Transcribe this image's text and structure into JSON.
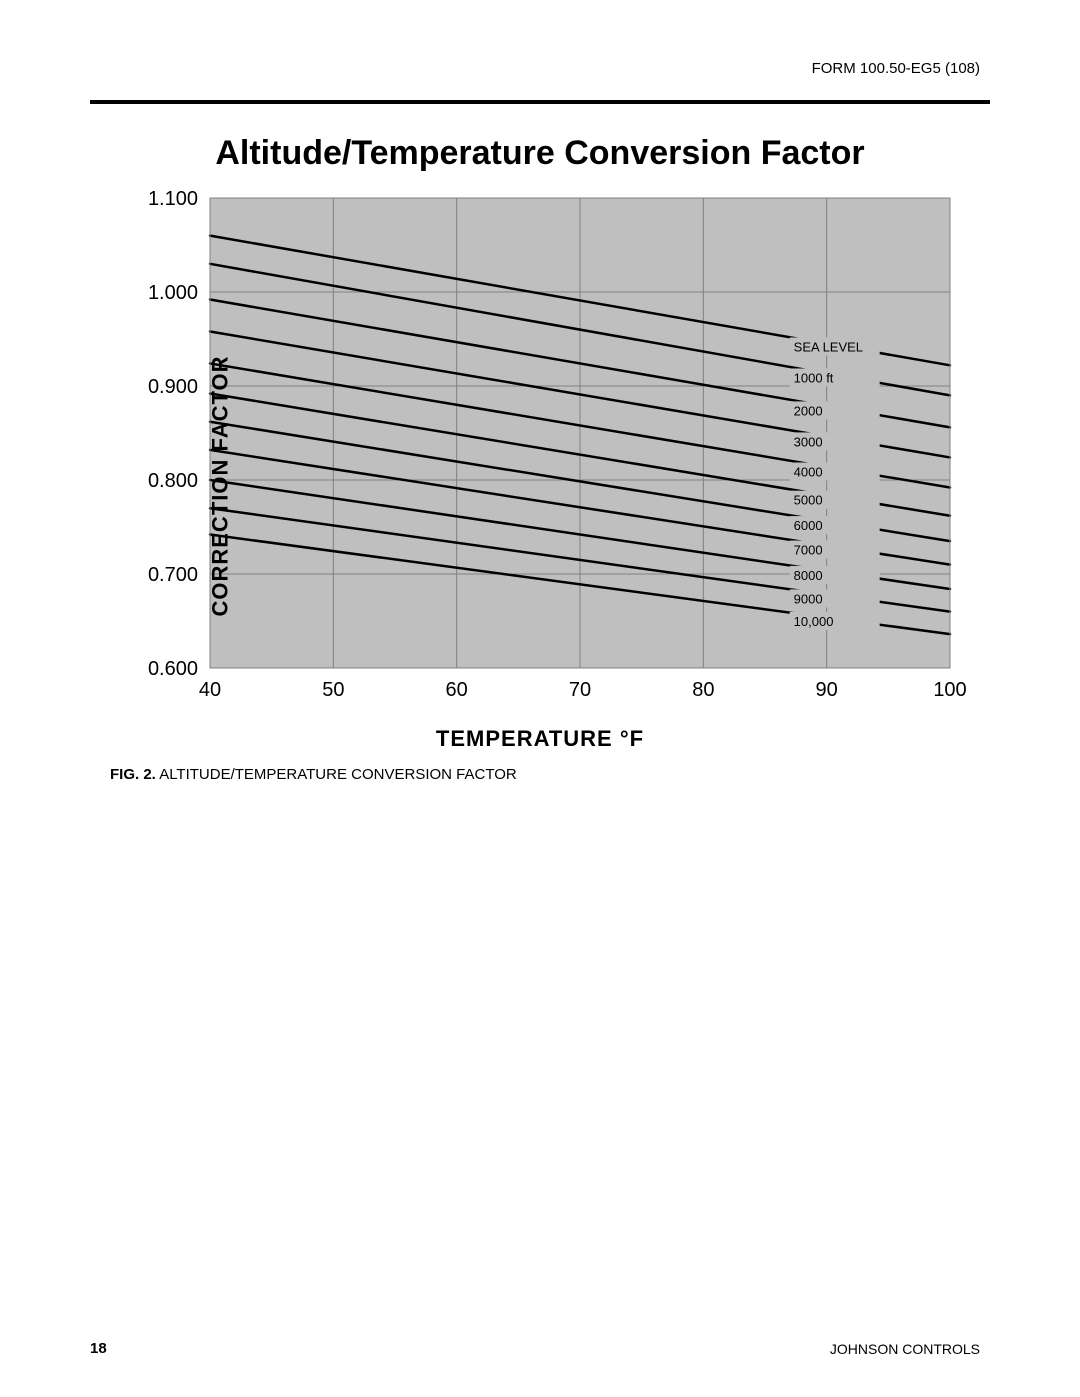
{
  "header": {
    "form_number": "FORM 100.50-EG5 (108)"
  },
  "chart": {
    "type": "line",
    "title": "Altitude/Temperature Conversion Factor",
    "x_label": "TEMPERATURE °F",
    "y_label": "CORRECTION FACTOR",
    "xlim": [
      40,
      100
    ],
    "ylim": [
      0.6,
      1.1
    ],
    "xtick_step": 10,
    "ytick_step": 0.1,
    "xticks": [
      "40",
      "50",
      "60",
      "70",
      "80",
      "90",
      "100"
    ],
    "yticks": [
      "1.100",
      "1.000",
      "0.900",
      "0.800",
      "0.700",
      "0.600"
    ],
    "plot_background": "#bfbfbf",
    "gridline_color": "#808080",
    "gridline_width": 1,
    "line_color": "#000000",
    "line_width": 2.5,
    "series": [
      {
        "label": "SEA LEVEL",
        "y_at_40": 1.06,
        "y_at_100": 0.922,
        "label_y": 0.941
      },
      {
        "label": "1000 ft",
        "y_at_40": 1.03,
        "y_at_100": 0.89,
        "label_y": 0.908
      },
      {
        "label": "2000",
        "y_at_40": 0.992,
        "y_at_100": 0.856,
        "label_y": 0.873
      },
      {
        "label": "3000",
        "y_at_40": 0.958,
        "y_at_100": 0.824,
        "label_y": 0.84
      },
      {
        "label": "4000",
        "y_at_40": 0.924,
        "y_at_100": 0.792,
        "label_y": 0.808
      },
      {
        "label": "5000",
        "y_at_40": 0.892,
        "y_at_100": 0.762,
        "label_y": 0.778
      },
      {
        "label": "6000",
        "y_at_40": 0.862,
        "y_at_100": 0.735,
        "label_y": 0.751
      },
      {
        "label": "7000",
        "y_at_40": 0.832,
        "y_at_100": 0.71,
        "label_y": 0.725
      },
      {
        "label": "8000",
        "y_at_40": 0.8,
        "y_at_100": 0.684,
        "label_y": 0.698
      },
      {
        "label": "9000",
        "y_at_40": 0.77,
        "y_at_100": 0.66,
        "label_y": 0.673
      },
      {
        "label": "10,000",
        "y_at_40": 0.742,
        "y_at_100": 0.636,
        "label_y": 0.649
      }
    ],
    "label_box": {
      "fill": "#bfbfbf",
      "stroke": "none",
      "font_size": 13
    },
    "axis_font_size": 20,
    "title_font_size": 34
  },
  "caption": {
    "prefix": "FIG. 2.",
    "text": "ALTITUDE/TEMPERATURE CONVERSION FACTOR"
  },
  "footer": {
    "page_number": "18",
    "company": "JOHNSON CONTROLS"
  }
}
